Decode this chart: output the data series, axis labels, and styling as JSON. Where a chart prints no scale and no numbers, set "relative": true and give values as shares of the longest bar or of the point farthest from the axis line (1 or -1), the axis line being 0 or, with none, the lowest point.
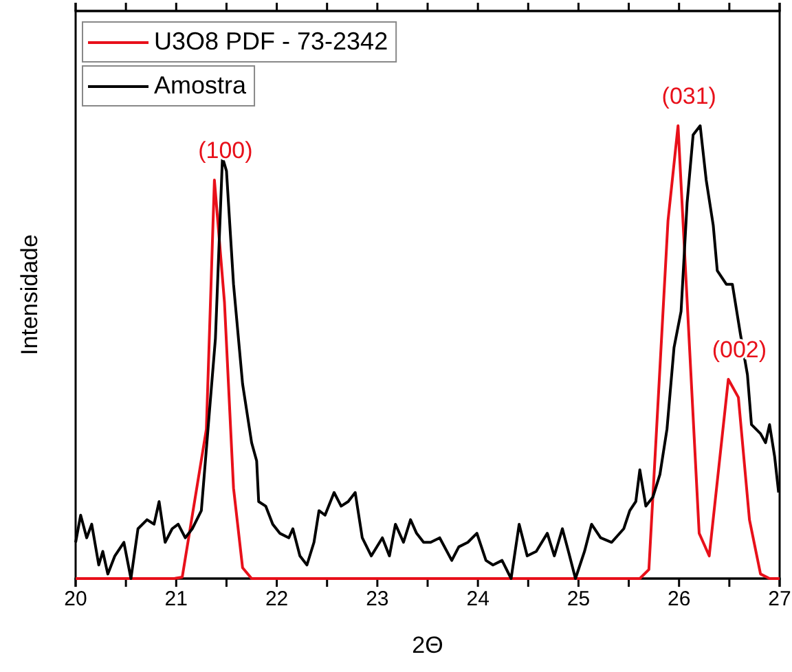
{
  "chart_data": {
    "type": "line",
    "xlabel": "2Θ",
    "ylabel": "Intensidade",
    "relative": true,
    "xlim": [
      20,
      27
    ],
    "xticks": [
      20,
      {
        "value": 20.5,
        "label": null
      },
      21,
      {
        "value": 21.5,
        "label": null
      },
      22,
      {
        "value": 22.5,
        "label": null
      },
      23,
      {
        "value": 23.5,
        "label": null
      },
      24,
      {
        "value": 24.5,
        "label": null
      },
      25,
      {
        "value": 25.5,
        "label": null
      },
      26,
      {
        "value": 26.5,
        "label": null
      },
      27
    ],
    "legend": "top left",
    "grid": false,
    "line_style": "solid",
    "marker": "none",
    "series": [
      {
        "name": "U3O8 PDF - 73-2342",
        "color": "#e8101a",
        "x": [
          20,
          20.98,
          21.06,
          21.3,
          21.38,
          21.48,
          21.57,
          21.66,
          21.75,
          25.61,
          25.7,
          25.89,
          25.99,
          26.2,
          26.3,
          26.49,
          26.59,
          26.7,
          26.81,
          26.9,
          27
        ],
        "values": [
          0,
          0,
          0.003,
          0.33,
          0.88,
          0.61,
          0.2,
          0.024,
          0,
          0,
          0.02,
          0.79,
          1.0,
          0.1,
          0.05,
          0.44,
          0.4,
          0.13,
          0.01,
          0,
          0
        ]
      },
      {
        "name": "Amostra",
        "color": "#000000",
        "x": [
          20.0,
          20.05,
          20.11,
          20.16,
          20.23,
          20.27,
          20.32,
          20.39,
          20.48,
          20.55,
          20.62,
          20.71,
          20.78,
          20.83,
          20.89,
          20.96,
          21.02,
          21.09,
          21.16,
          21.25,
          21.32,
          21.39,
          21.46,
          21.5,
          21.57,
          21.66,
          21.75,
          21.8,
          21.82,
          21.89,
          21.96,
          22.03,
          22.12,
          22.16,
          22.23,
          22.3,
          22.37,
          22.42,
          22.48,
          22.57,
          22.64,
          22.71,
          22.78,
          22.85,
          22.94,
          23.05,
          23.12,
          23.18,
          23.26,
          23.33,
          23.39,
          23.46,
          23.53,
          23.62,
          23.74,
          23.81,
          23.9,
          23.99,
          24.08,
          24.15,
          24.24,
          24.33,
          24.41,
          24.49,
          24.58,
          24.69,
          24.76,
          24.84,
          24.9,
          24.97,
          25.06,
          25.13,
          25.22,
          25.33,
          25.45,
          25.51,
          25.57,
          25.61,
          25.67,
          25.74,
          25.81,
          25.88,
          25.95,
          26.02,
          26.08,
          26.14,
          26.21,
          26.27,
          26.34,
          26.38,
          26.47,
          26.53,
          26.61,
          26.68,
          26.72,
          26.81,
          26.86,
          26.9,
          26.95,
          26.99
        ],
        "values": [
          0.08,
          0.14,
          0.09,
          0.12,
          0.03,
          0.06,
          0.01,
          0.05,
          0.08,
          0.0,
          0.11,
          0.13,
          0.12,
          0.17,
          0.08,
          0.11,
          0.12,
          0.09,
          0.11,
          0.15,
          0.34,
          0.53,
          0.93,
          0.9,
          0.65,
          0.43,
          0.3,
          0.26,
          0.17,
          0.16,
          0.12,
          0.1,
          0.09,
          0.11,
          0.05,
          0.03,
          0.08,
          0.15,
          0.14,
          0.19,
          0.16,
          0.17,
          0.19,
          0.09,
          0.05,
          0.09,
          0.05,
          0.12,
          0.08,
          0.13,
          0.1,
          0.08,
          0.08,
          0.09,
          0.04,
          0.07,
          0.08,
          0.1,
          0.04,
          0.03,
          0.04,
          0.0,
          0.12,
          0.05,
          0.06,
          0.1,
          0.05,
          0.11,
          0.06,
          0.0,
          0.06,
          0.12,
          0.09,
          0.08,
          0.11,
          0.15,
          0.17,
          0.24,
          0.16,
          0.18,
          0.23,
          0.33,
          0.51,
          0.59,
          0.83,
          0.98,
          1.0,
          0.88,
          0.78,
          0.68,
          0.65,
          0.65,
          0.54,
          0.45,
          0.34,
          0.32,
          0.3,
          0.34,
          0.27,
          0.19
        ]
      }
    ],
    "annotations": [
      {
        "text": "(100)",
        "x": 21.38,
        "y": 0.88
      },
      {
        "text": "(031)",
        "x": 25.99,
        "y": 1.0
      },
      {
        "text": "(002)",
        "x": 26.49,
        "y": 0.44
      }
    ]
  }
}
